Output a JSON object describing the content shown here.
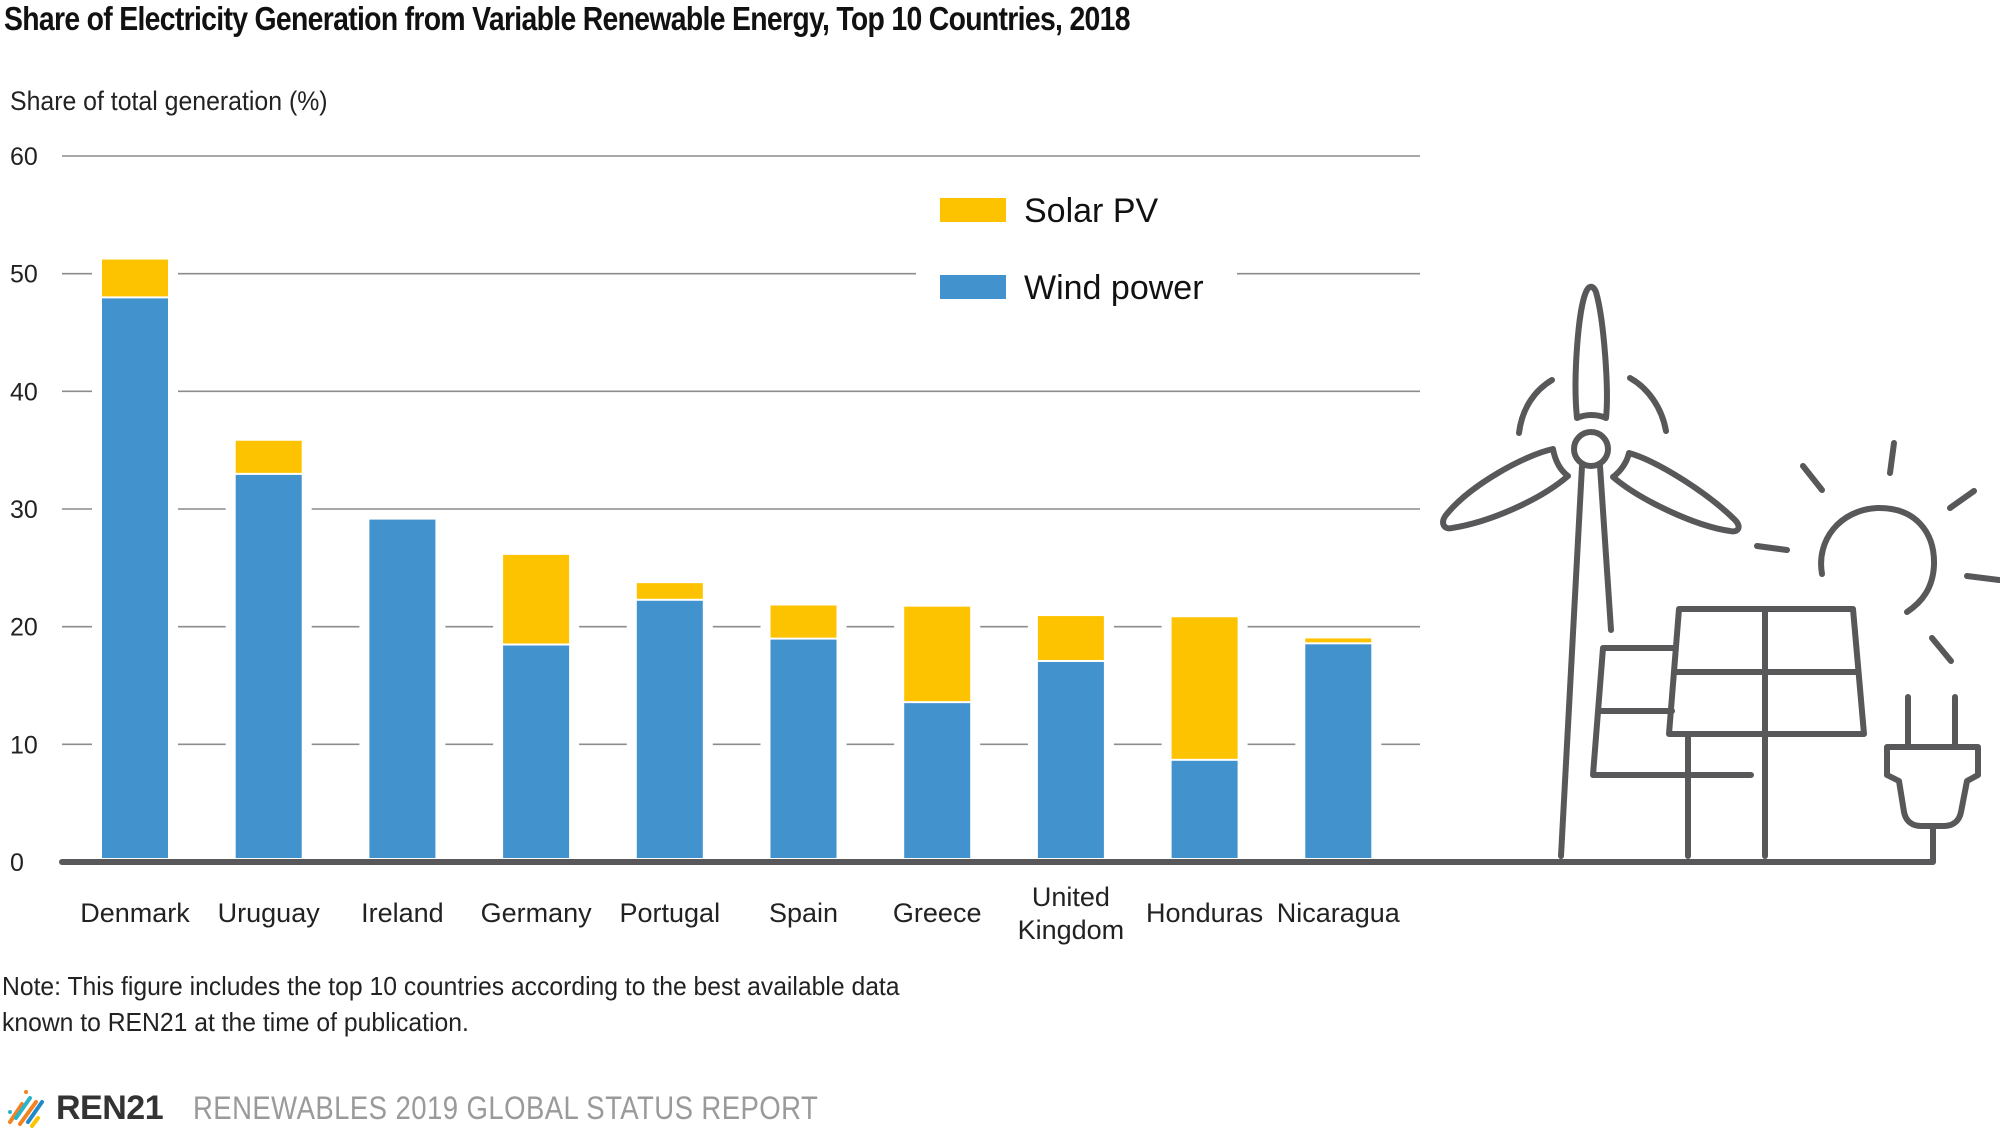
{
  "chart_data": {
    "type": "bar",
    "stacked": true,
    "title": "Share of Electricity Generation from Variable Renewable Energy, Top 10 Countries, 2018",
    "ylabel": "Share of total generation (%)",
    "xlabel": "",
    "ylim": [
      0,
      60
    ],
    "yticks": [
      0,
      10,
      20,
      30,
      40,
      50,
      60
    ],
    "grid": true,
    "legend_position": "top-right",
    "categories": [
      "Denmark",
      "Uruguay",
      "Ireland",
      "Germany",
      "Portugal",
      "Spain",
      "Greece",
      "United Kingdom",
      "Honduras",
      "Nicaragua"
    ],
    "category_lines": [
      [
        "Denmark"
      ],
      [
        "Uruguay"
      ],
      [
        "Ireland"
      ],
      [
        "Germany"
      ],
      [
        "Portugal"
      ],
      [
        "Spain"
      ],
      [
        "Greece"
      ],
      [
        "United",
        "Kingdom"
      ],
      [
        "Honduras"
      ],
      [
        "Nicaragua"
      ]
    ],
    "series": [
      {
        "name": "Wind power",
        "color": "#4292ce",
        "values": [
          47.9,
          32.9,
          29.1,
          18.4,
          22.2,
          18.9,
          13.5,
          17.0,
          8.6,
          18.5
        ]
      },
      {
        "name": "Solar PV",
        "color": "#fdc300",
        "values": [
          3.3,
          2.9,
          0.0,
          7.7,
          1.5,
          2.9,
          8.2,
          3.9,
          12.2,
          0.5
        ]
      }
    ],
    "legend_order": [
      "Solar PV",
      "Wind power"
    ]
  },
  "note": {
    "line1": "Note: This figure includes the top 10 countries according to the best available data",
    "line2": "known to REN21 at the time of publication."
  },
  "footer": {
    "logo_text": "REN21",
    "report": "RENEWABLES 2019 GLOBAL STATUS REPORT"
  },
  "illustration": {
    "icons": [
      "wind-turbine-icon",
      "solar-panel-icon",
      "sun-icon",
      "power-plug-icon"
    ]
  },
  "colors": {
    "wind": "#4292ce",
    "solar": "#fdc300",
    "grid": "#8c8c8c",
    "axis": "#58585a"
  }
}
